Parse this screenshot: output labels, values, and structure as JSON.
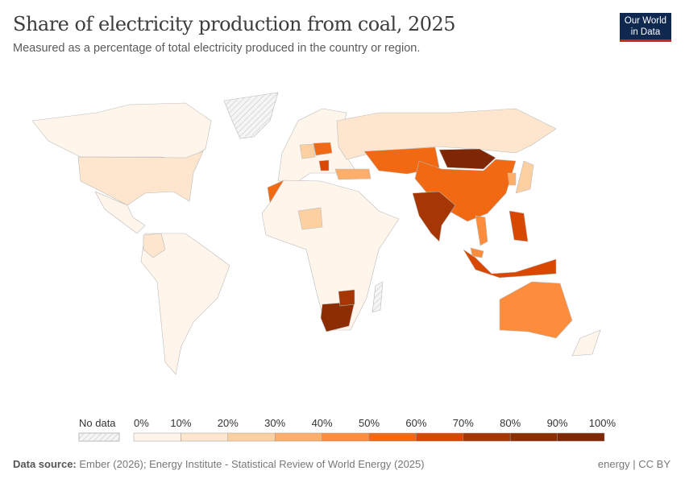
{
  "header": {
    "title": "Share of electricity production from coal, 2025",
    "subtitle": "Measured as a percentage of total electricity produced in the country or region.",
    "logo": "Our World in Data"
  },
  "legend": {
    "no_data_label": "No data",
    "no_data_color": "#f2f2f2",
    "bins": [
      {
        "label": "0%",
        "color": "#fff5eb"
      },
      {
        "label": "10%",
        "color": "#fee6ce"
      },
      {
        "label": "20%",
        "color": "#fdd0a2"
      },
      {
        "label": "30%",
        "color": "#fdae6b"
      },
      {
        "label": "40%",
        "color": "#fd8d3c"
      },
      {
        "label": "50%",
        "color": "#f16913"
      },
      {
        "label": "60%",
        "color": "#d94801"
      },
      {
        "label": "70%",
        "color": "#a63603"
      },
      {
        "label": "80%",
        "color": "#8c2d04"
      },
      {
        "label": "90%",
        "color": "#7f2704"
      }
    ],
    "end_label": "100%"
  },
  "regions": [
    {
      "name": "Canada",
      "share": 8
    },
    {
      "name": "United States",
      "share": 16
    },
    {
      "name": "Greenland",
      "share": null
    },
    {
      "name": "Mexico",
      "share": 5
    },
    {
      "name": "South America",
      "share": 3
    },
    {
      "name": "Colombia",
      "share": 12
    },
    {
      "name": "Europe",
      "share": 8
    },
    {
      "name": "Poland",
      "share": 55
    },
    {
      "name": "Germany",
      "share": 22
    },
    {
      "name": "Serbia",
      "share": 60
    },
    {
      "name": "Russia",
      "share": 15
    },
    {
      "name": "Kazakhstan",
      "share": 58
    },
    {
      "name": "Mongolia",
      "share": 92
    },
    {
      "name": "China",
      "share": 57
    },
    {
      "name": "India",
      "share": 74
    },
    {
      "name": "Turkey",
      "share": 35
    },
    {
      "name": "Morocco",
      "share": 58
    },
    {
      "name": "Africa",
      "share": 2
    },
    {
      "name": "Niger",
      "share": 25
    },
    {
      "name": "South Africa",
      "share": 82
    },
    {
      "name": "Zimbabwe",
      "share": 70
    },
    {
      "name": "Madagascar",
      "share": null
    },
    {
      "name": "Indonesia",
      "share": 62
    },
    {
      "name": "Vietnam",
      "share": 45
    },
    {
      "name": "Philippines",
      "share": 62
    },
    {
      "name": "Malaysia",
      "share": 45
    },
    {
      "name": "Australia",
      "share": 45
    },
    {
      "name": "Japan",
      "share": 28
    },
    {
      "name": "South Korea",
      "share": 32
    },
    {
      "name": "New Zealand",
      "share": 3
    }
  ],
  "footer": {
    "source_label": "Data source:",
    "source": "Ember (2026); Energy Institute - Statistical Review of World Energy (2025)",
    "license": "energy | CC BY"
  }
}
